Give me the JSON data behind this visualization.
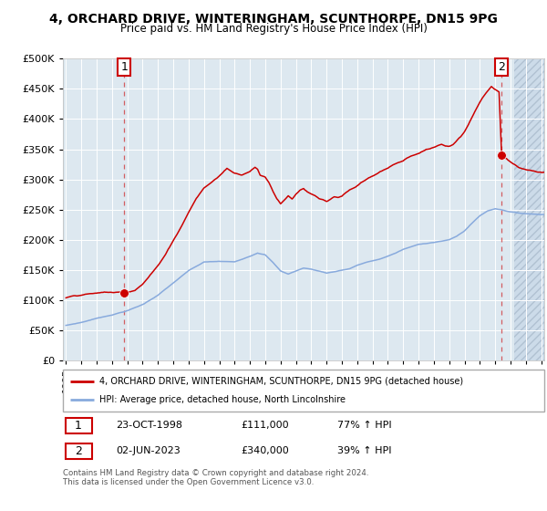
{
  "title": "4, ORCHARD DRIVE, WINTERINGHAM, SCUNTHORPE, DN15 9PG",
  "subtitle": "Price paid vs. HM Land Registry's House Price Index (HPI)",
  "legend_line1": "4, ORCHARD DRIVE, WINTERINGHAM, SCUNTHORPE, DN15 9PG (detached house)",
  "legend_line2": "HPI: Average price, detached house, North Lincolnshire",
  "annotation1_num": "1",
  "annotation1_date": "23-OCT-1998",
  "annotation1_price": "£111,000",
  "annotation1_hpi": "77% ↑ HPI",
  "annotation2_num": "2",
  "annotation2_date": "02-JUN-2023",
  "annotation2_price": "£340,000",
  "annotation2_hpi": "39% ↑ HPI",
  "footer": "Contains HM Land Registry data © Crown copyright and database right 2024.\nThis data is licensed under the Open Government Licence v3.0.",
  "ylim": [
    0,
    500000
  ],
  "yticks": [
    0,
    50000,
    100000,
    150000,
    200000,
    250000,
    300000,
    350000,
    400000,
    450000,
    500000
  ],
  "red_color": "#cc0000",
  "blue_color": "#88aadd",
  "bg_color": "#dde8f0",
  "hatch_color": "#c8d8e8",
  "grid_color": "#ffffff",
  "purchase1_x": 1998.81,
  "purchase1_y": 111000,
  "purchase2_x": 2023.42,
  "purchase2_y": 340000,
  "hatch_start": 2024.25,
  "xlim_start": 1994.8,
  "xlim_end": 2026.2,
  "xticks": [
    1995,
    1996,
    1997,
    1998,
    1999,
    2000,
    2001,
    2002,
    2003,
    2004,
    2005,
    2006,
    2007,
    2008,
    2009,
    2010,
    2011,
    2012,
    2013,
    2014,
    2015,
    2016,
    2017,
    2018,
    2019,
    2020,
    2021,
    2022,
    2023,
    2024,
    2025,
    2026
  ],
  "blue_keypoints": {
    "1995.0": 57000,
    "1996.0": 62000,
    "1997.0": 69000,
    "1998.0": 75000,
    "1999.0": 82000,
    "2000.0": 92000,
    "2001.0": 108000,
    "2002.0": 128000,
    "2003.0": 148000,
    "2004.0": 162000,
    "2005.0": 163000,
    "2006.0": 162000,
    "2007.0": 172000,
    "2007.5": 178000,
    "2008.0": 175000,
    "2008.5": 162000,
    "2009.0": 148000,
    "2009.5": 143000,
    "2010.0": 148000,
    "2010.5": 153000,
    "2011.0": 151000,
    "2011.5": 148000,
    "2012.0": 145000,
    "2012.5": 147000,
    "2013.0": 150000,
    "2013.5": 152000,
    "2014.0": 158000,
    "2014.5": 162000,
    "2015.0": 165000,
    "2015.5": 168000,
    "2016.0": 173000,
    "2016.5": 178000,
    "2017.0": 184000,
    "2017.5": 188000,
    "2018.0": 192000,
    "2018.5": 194000,
    "2019.0": 196000,
    "2019.5": 198000,
    "2020.0": 200000,
    "2020.5": 206000,
    "2021.0": 215000,
    "2021.5": 228000,
    "2022.0": 240000,
    "2022.5": 248000,
    "2023.0": 252000,
    "2023.5": 250000,
    "2024.0": 247000,
    "2024.5": 245000,
    "2025.0": 244000,
    "2026.0": 243000
  },
  "red_keypoints": {
    "1995.0": 100000,
    "1995.5": 103000,
    "1996.0": 105000,
    "1996.5": 108000,
    "1997.0": 108000,
    "1997.5": 110000,
    "1998.0": 109000,
    "1998.5": 110000,
    "1998.81": 111000,
    "1999.0": 111000,
    "1999.5": 115000,
    "2000.0": 125000,
    "2000.5": 140000,
    "2001.0": 155000,
    "2001.5": 175000,
    "2002.0": 198000,
    "2002.5": 220000,
    "2003.0": 245000,
    "2003.5": 268000,
    "2004.0": 285000,
    "2004.5": 295000,
    "2005.0": 305000,
    "2005.5": 318000,
    "2006.0": 310000,
    "2006.5": 308000,
    "2007.0": 315000,
    "2007.33": 322000,
    "2007.5": 318000,
    "2007.67": 308000,
    "2008.0": 305000,
    "2008.25": 296000,
    "2008.5": 282000,
    "2008.75": 270000,
    "2009.0": 262000,
    "2009.25": 268000,
    "2009.5": 275000,
    "2009.75": 270000,
    "2010.0": 278000,
    "2010.25": 285000,
    "2010.5": 288000,
    "2010.75": 282000,
    "2011.0": 278000,
    "2011.25": 275000,
    "2011.5": 270000,
    "2011.75": 268000,
    "2012.0": 265000,
    "2012.25": 268000,
    "2012.5": 272000,
    "2012.75": 270000,
    "2013.0": 272000,
    "2013.25": 278000,
    "2013.5": 282000,
    "2013.75": 285000,
    "2014.0": 290000,
    "2014.25": 295000,
    "2014.5": 298000,
    "2014.75": 302000,
    "2015.0": 305000,
    "2015.25": 308000,
    "2015.5": 312000,
    "2015.75": 315000,
    "2016.0": 318000,
    "2016.25": 322000,
    "2016.5": 325000,
    "2016.75": 328000,
    "2017.0": 330000,
    "2017.25": 335000,
    "2017.5": 338000,
    "2017.75": 340000,
    "2018.0": 342000,
    "2018.25": 345000,
    "2018.5": 348000,
    "2018.75": 350000,
    "2019.0": 352000,
    "2019.25": 355000,
    "2019.5": 358000,
    "2019.75": 355000,
    "2020.0": 355000,
    "2020.25": 358000,
    "2020.5": 365000,
    "2020.75": 372000,
    "2021.0": 380000,
    "2021.25": 392000,
    "2021.5": 405000,
    "2021.75": 418000,
    "2022.0": 430000,
    "2022.25": 440000,
    "2022.5": 448000,
    "2022.75": 455000,
    "2023.0": 450000,
    "2023.25": 445000,
    "2023.42": 340000,
    "2023.5": 338000,
    "2023.75": 335000,
    "2024.0": 330000,
    "2024.25": 326000,
    "2024.5": 322000,
    "2025.0": 318000,
    "2026.0": 314000
  }
}
